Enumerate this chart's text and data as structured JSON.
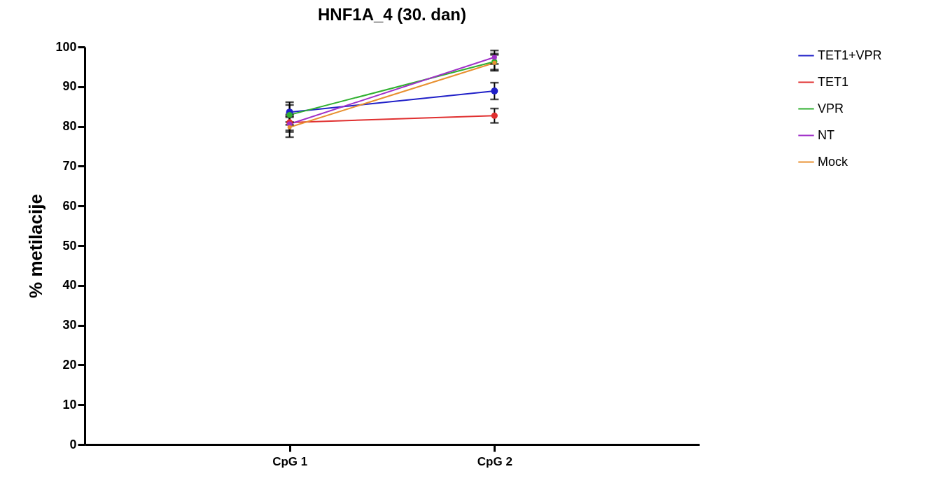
{
  "chart_data": {
    "type": "line",
    "title": "HNF1A_4 (30. dan)",
    "ylabel": "% metilacije",
    "categories": [
      "CpG 1",
      "CpG 2"
    ],
    "series": [
      {
        "name": "TET1+VPR",
        "color": "#2020c8",
        "values": [
          83.6,
          88.9
        ],
        "errors": [
          2.5,
          2.1
        ]
      },
      {
        "name": "TET1",
        "color": "#e03030",
        "values": [
          81.0,
          82.7
        ],
        "errors": [
          2,
          1.8
        ]
      },
      {
        "name": "VPR",
        "color": "#30b030",
        "values": [
          82.9,
          96.3
        ],
        "errors": [
          2.5,
          2
        ]
      },
      {
        "name": "NT",
        "color": "#a030c8",
        "values": [
          80.6,
          97.4
        ],
        "errors": [
          2,
          1.7
        ]
      },
      {
        "name": "Mock",
        "color": "#e89030",
        "values": [
          79.8,
          96.0
        ],
        "errors": [
          2.5,
          2
        ]
      }
    ],
    "ylim": [
      0,
      100
    ],
    "yticks": [
      0,
      10,
      20,
      30,
      40,
      50,
      60,
      70,
      80,
      90,
      100
    ],
    "grid": false,
    "legend": "top right",
    "marker": "circle",
    "line_style": "solid"
  }
}
